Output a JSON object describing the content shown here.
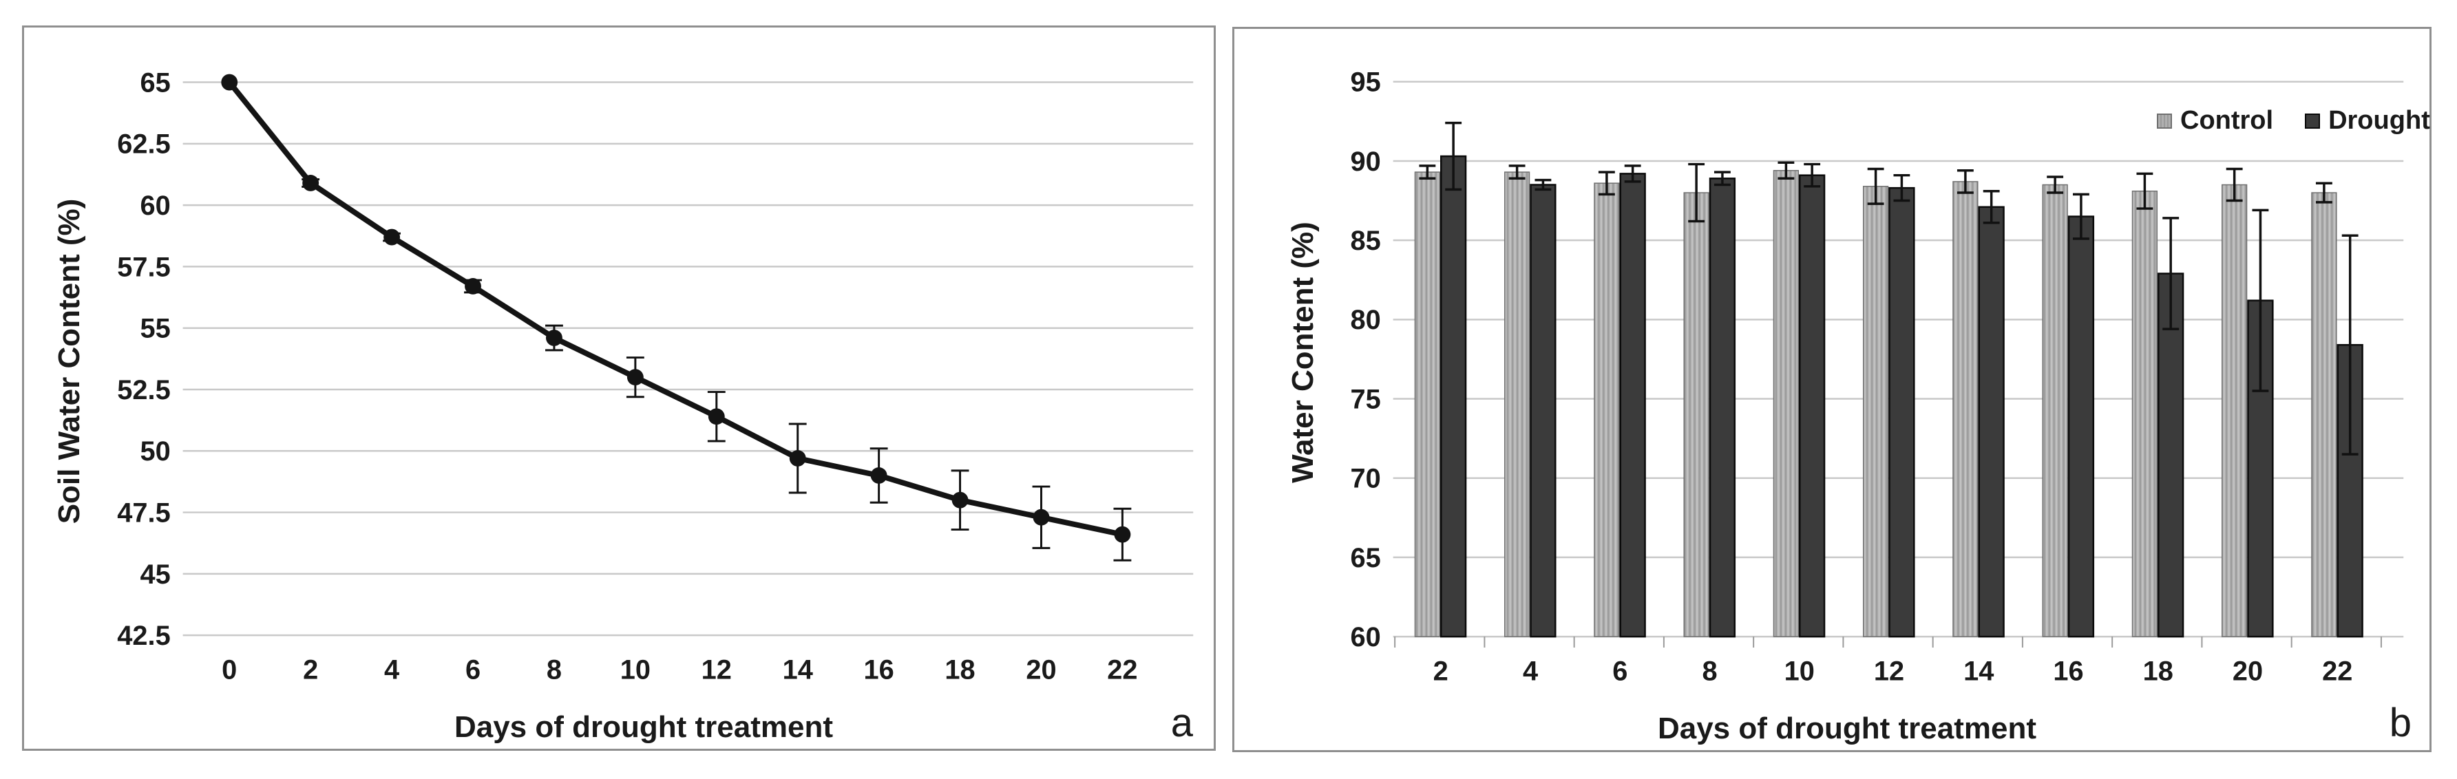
{
  "figure": {
    "style": {
      "background": "#ffffff",
      "panel_border": "#8f8f8f",
      "gridline": "#c9c9c9",
      "text": "#1a1a1a",
      "tick_mark": "#9a9a9a"
    }
  },
  "chart_data": [
    {
      "type": "line",
      "panel_label": "a",
      "title": "",
      "xlabel": "Days of drought treatment",
      "ylabel": "Soil Water Content (%)",
      "x": [
        0,
        2,
        4,
        6,
        8,
        10,
        12,
        14,
        16,
        18,
        20,
        22
      ],
      "values": [
        65.0,
        60.9,
        58.7,
        56.7,
        54.6,
        53.0,
        51.4,
        49.7,
        49.0,
        48.0,
        47.3,
        46.6
      ],
      "errors": [
        0,
        0.15,
        0.15,
        0.25,
        0.5,
        0.8,
        1.0,
        1.4,
        1.1,
        1.2,
        1.25,
        1.05
      ],
      "ylim": [
        42.5,
        65
      ],
      "yticks": [
        {
          "v": 65,
          "label": "65"
        },
        {
          "v": 62.5,
          "label": "62.5"
        },
        {
          "v": 60,
          "label": "60"
        },
        {
          "v": 57.5,
          "label": "57.5"
        },
        {
          "v": 55,
          "label": "55"
        },
        {
          "v": 52.5,
          "label": "52.5"
        },
        {
          "v": 50,
          "label": "50"
        },
        {
          "v": 47.5,
          "label": "47.5"
        },
        {
          "v": 45,
          "label": "45"
        },
        {
          "v": 42.5,
          "label": "42.5"
        }
      ],
      "grid": true,
      "legend": "none",
      "line_color": "#141414",
      "marker": "circle"
    },
    {
      "type": "bar",
      "panel_label": "b",
      "title": "",
      "xlabel": "Days of drought treatment",
      "ylabel": "Water Content (%)",
      "categories": [
        2,
        4,
        6,
        8,
        10,
        12,
        14,
        16,
        18,
        20,
        22
      ],
      "series": [
        {
          "name": "Control",
          "color": "#b0b0b0",
          "stripe_color": "#9a9a9a",
          "border": "#6f6f6f",
          "values": [
            89.3,
            89.3,
            88.6,
            88.0,
            89.4,
            88.4,
            88.7,
            88.5,
            88.1,
            88.5,
            88.0
          ],
          "errors": [
            0.4,
            0.4,
            0.7,
            1.8,
            0.5,
            1.1,
            0.7,
            0.5,
            1.1,
            1.0,
            0.6
          ]
        },
        {
          "name": "Drought",
          "color": "#3b3b3b",
          "stripe_color": "#474747",
          "border": "#0a0a0a",
          "values": [
            90.3,
            88.5,
            89.2,
            88.9,
            89.1,
            88.3,
            87.1,
            86.5,
            82.9,
            81.2,
            78.4
          ],
          "errors": [
            2.1,
            0.3,
            0.5,
            0.4,
            0.7,
            0.8,
            1.0,
            1.4,
            3.5,
            5.7,
            6.9
          ]
        }
      ],
      "ylim": [
        60,
        95
      ],
      "yticks": [
        {
          "v": 95,
          "label": "95"
        },
        {
          "v": 90,
          "label": "90"
        },
        {
          "v": 85,
          "label": "85"
        },
        {
          "v": 80,
          "label": "80"
        },
        {
          "v": 75,
          "label": "75"
        },
        {
          "v": 70,
          "label": "70"
        },
        {
          "v": 65,
          "label": "65"
        },
        {
          "v": 60,
          "label": "60"
        }
      ],
      "grid": true,
      "legend_position": "top-right"
    }
  ]
}
